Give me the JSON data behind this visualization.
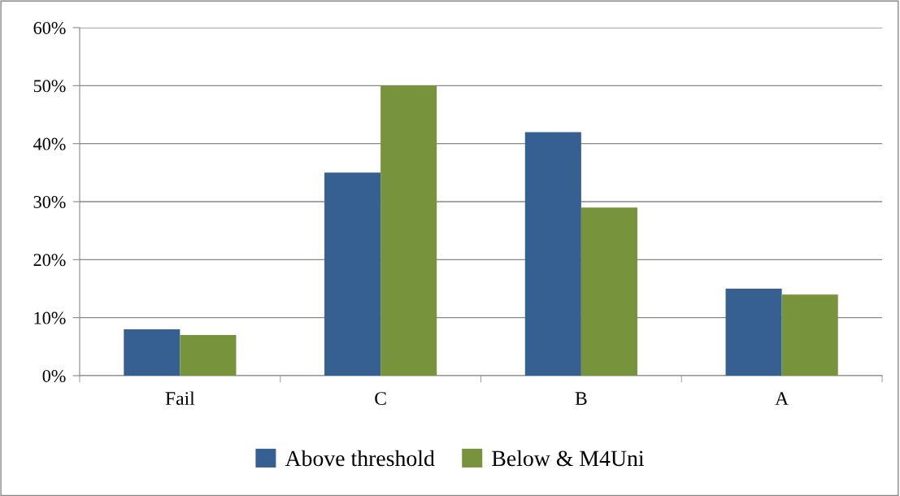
{
  "chart_data": {
    "type": "bar",
    "categories": [
      "Fail",
      "C",
      "B",
      "A"
    ],
    "series": [
      {
        "name": "Above threshold",
        "color": "#376092",
        "values": [
          8,
          35,
          42,
          15
        ]
      },
      {
        "name": "Below & M4Uni",
        "color": "#77933c",
        "values": [
          7,
          50,
          29,
          14
        ]
      }
    ],
    "ylim": [
      0,
      60
    ],
    "yticks": [
      {
        "value": 0,
        "label": "0%"
      },
      {
        "value": 10,
        "label": "10%"
      },
      {
        "value": 20,
        "label": "20%"
      },
      {
        "value": 30,
        "label": "30%"
      },
      {
        "value": 40,
        "label": "40%"
      },
      {
        "value": 50,
        "label": "50%"
      },
      {
        "value": 60,
        "label": "60%"
      }
    ],
    "grid": "y",
    "legend": "bottom"
  }
}
